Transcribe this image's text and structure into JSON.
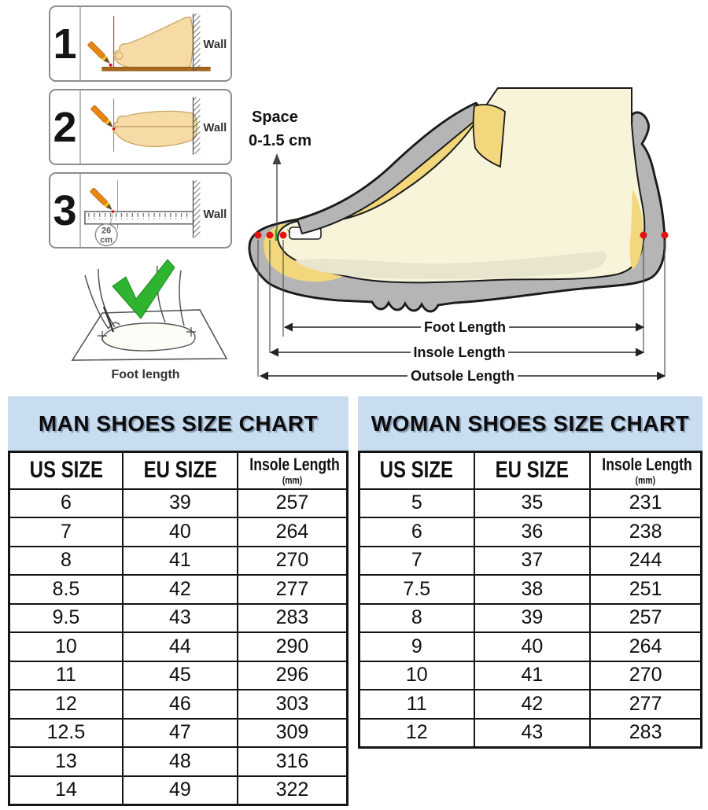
{
  "steps": [
    {
      "number": "1",
      "wall": "Wall"
    },
    {
      "number": "2",
      "wall": "Wall"
    },
    {
      "number": "3",
      "wall": "Wall",
      "badge_value": "26",
      "badge_unit": "cm"
    }
  ],
  "tracing": {
    "caption": "Foot length"
  },
  "shoe_diagram": {
    "space_line1": "Space",
    "space_line2": "0-1.5 cm",
    "foot_length_label": "Foot Length",
    "insole_length_label": "Insole Length",
    "outsole_length_label": "Outsole Length"
  },
  "man_chart": {
    "title": "MAN SHOES SIZE CHART",
    "col_us": "US SIZE",
    "col_eu": "EU SIZE",
    "col_insole": "Insole Length",
    "col_insole_unit": "(mm)",
    "rows": [
      [
        "6",
        "39",
        "257"
      ],
      [
        "7",
        "40",
        "264"
      ],
      [
        "8",
        "41",
        "270"
      ],
      [
        "8.5",
        "42",
        "277"
      ],
      [
        "9.5",
        "43",
        "283"
      ],
      [
        "10",
        "44",
        "290"
      ],
      [
        "11",
        "45",
        "296"
      ],
      [
        "12",
        "46",
        "303"
      ],
      [
        "12.5",
        "47",
        "309"
      ],
      [
        "13",
        "48",
        "316"
      ],
      [
        "14",
        "49",
        "322"
      ]
    ]
  },
  "woman_chart": {
    "title": "WOMAN SHOES SIZE CHART",
    "col_us": "US SIZE",
    "col_eu": "EU SIZE",
    "col_insole": "Insole Length",
    "col_insole_unit": "(mm)",
    "rows": [
      [
        "5",
        "35",
        "231"
      ],
      [
        "6",
        "36",
        "238"
      ],
      [
        "7",
        "37",
        "244"
      ],
      [
        "7.5",
        "38",
        "251"
      ],
      [
        "8",
        "39",
        "257"
      ],
      [
        "9",
        "40",
        "264"
      ],
      [
        "10",
        "41",
        "270"
      ],
      [
        "11",
        "42",
        "277"
      ],
      [
        "12",
        "43",
        "283"
      ]
    ]
  },
  "colors": {
    "header-bg": "#c9ddf0",
    "shoe-gray": "#b5b5b5",
    "lining-yellow": "#f2d77c",
    "foot-cream": "#f8f4da",
    "check-green": "#2eb42e",
    "pencil-orange": "#e8860f",
    "floor-brown": "#a9661f",
    "dot-red": "#e01414"
  },
  "chart_data": [
    {
      "type": "table",
      "title": "MAN SHOES SIZE CHART",
      "columns": [
        "US SIZE",
        "EU SIZE",
        "Insole Length (mm)"
      ],
      "rows": [
        [
          "6",
          "39",
          "257"
        ],
        [
          "7",
          "40",
          "264"
        ],
        [
          "8",
          "41",
          "270"
        ],
        [
          "8.5",
          "42",
          "277"
        ],
        [
          "9.5",
          "43",
          "283"
        ],
        [
          "10",
          "44",
          "290"
        ],
        [
          "11",
          "45",
          "296"
        ],
        [
          "12",
          "46",
          "303"
        ],
        [
          "12.5",
          "47",
          "309"
        ],
        [
          "13",
          "48",
          "316"
        ],
        [
          "14",
          "49",
          "322"
        ]
      ]
    },
    {
      "type": "table",
      "title": "WOMAN SHOES SIZE CHART",
      "columns": [
        "US SIZE",
        "EU SIZE",
        "Insole Length (mm)"
      ],
      "rows": [
        [
          "5",
          "35",
          "231"
        ],
        [
          "6",
          "36",
          "238"
        ],
        [
          "7",
          "37",
          "244"
        ],
        [
          "7.5",
          "38",
          "251"
        ],
        [
          "8",
          "39",
          "257"
        ],
        [
          "9",
          "40",
          "264"
        ],
        [
          "10",
          "41",
          "270"
        ],
        [
          "11",
          "42",
          "277"
        ],
        [
          "12",
          "43",
          "283"
        ]
      ]
    }
  ]
}
